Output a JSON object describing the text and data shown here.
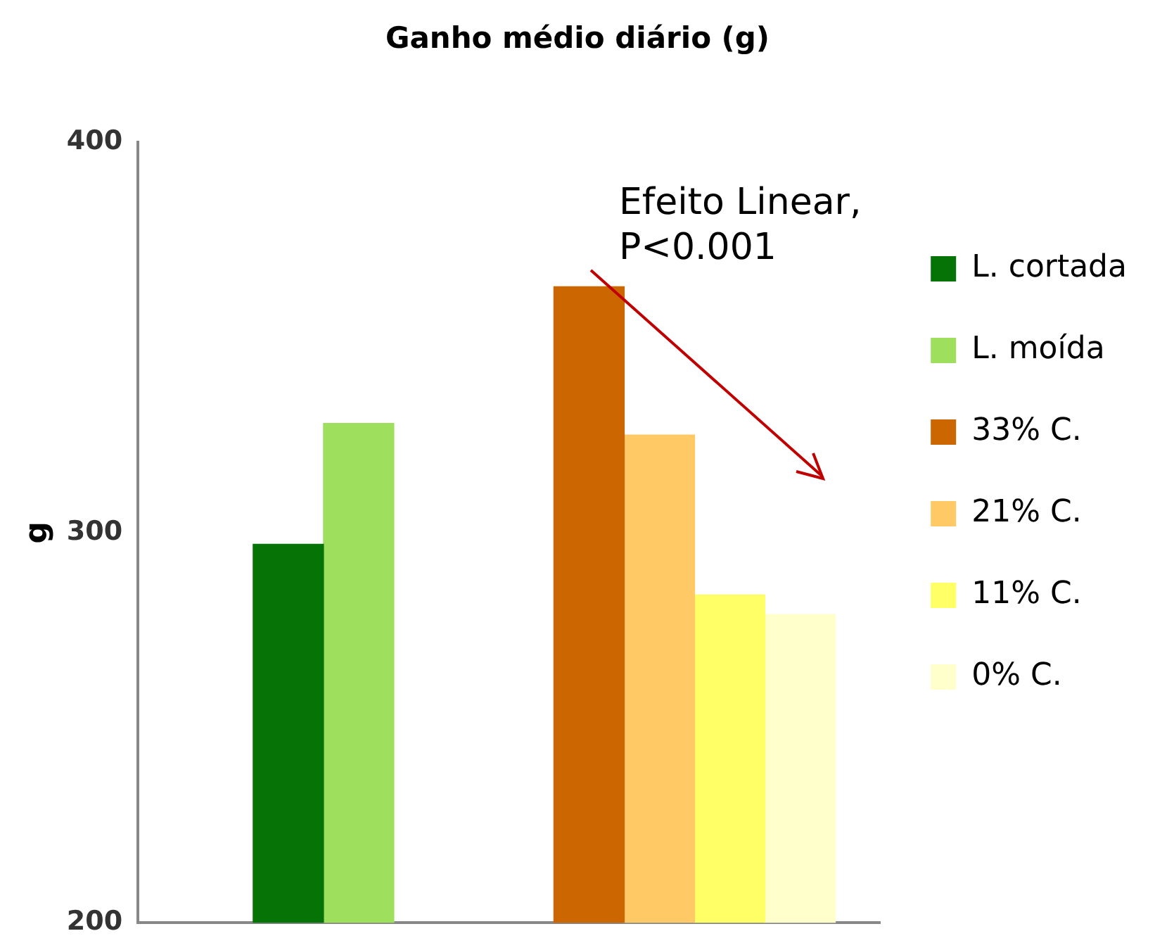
{
  "chart_data": {
    "type": "bar",
    "title": "Ganho médio diário (g)",
    "ylabel": "g",
    "categories": [
      null,
      null
    ],
    "series": [
      {
        "name": "L. cortada",
        "color": "#067306",
        "values": [
          297,
          null
        ]
      },
      {
        "name": "L. moída",
        "color": "#9ee05e",
        "values": [
          328,
          null
        ]
      },
      {
        "name": "33% C.",
        "color": "#cc6600",
        "values": [
          null,
          363
        ]
      },
      {
        "name": "21% C.",
        "color": "#ffc966",
        "values": [
          null,
          325
        ]
      },
      {
        "name": "11% C.",
        "color": "#ffff66",
        "values": [
          null,
          284
        ]
      },
      {
        "name": "0% C.",
        "color": "#ffffcc",
        "values": [
          null,
          279
        ]
      }
    ],
    "ylim": [
      200,
      400
    ],
    "yticks": [
      200,
      300,
      400
    ],
    "grid": false,
    "legend": "right",
    "annotations": [
      "Efeito Linear, P<0.001"
    ]
  }
}
